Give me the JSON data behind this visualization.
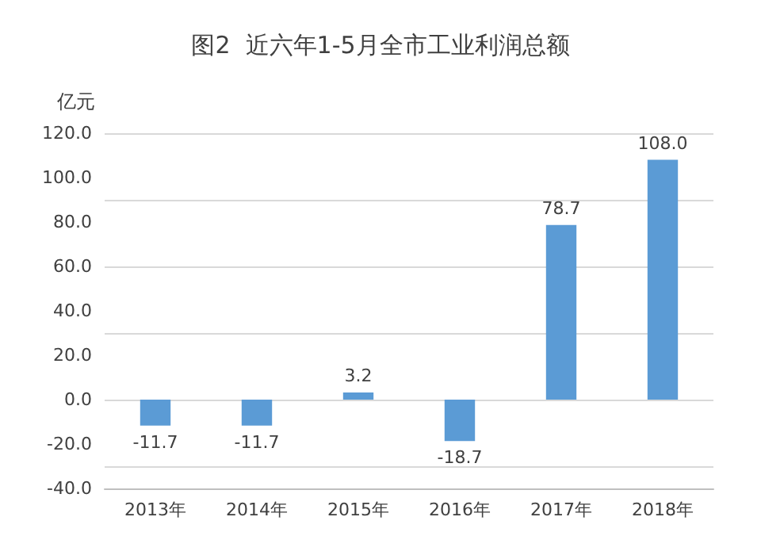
{
  "chart_data": {
    "type": "bar",
    "title": "图2  近六年1-5月全市工业利润总额",
    "ylabel": "亿元",
    "categories": [
      "2013年",
      "2014年",
      "2015年",
      "2016年",
      "2017年",
      "2018年"
    ],
    "values": [
      -11.7,
      -11.7,
      3.2,
      -18.7,
      78.7,
      108.0
    ],
    "value_labels": [
      "-11.7",
      "-11.7",
      "3.2",
      "-18.7",
      "78.7",
      "108.0"
    ],
    "color": "#5b9bd5",
    "ylim": [
      -40,
      120
    ],
    "yticks": [
      {
        "value": -40,
        "label": "-40.0"
      },
      {
        "value": -20,
        "label": "-20.0"
      },
      {
        "value": 0,
        "label": "0.0"
      },
      {
        "value": 20,
        "label": "20.0"
      },
      {
        "value": 40,
        "label": "40.0"
      },
      {
        "value": 60,
        "label": "60.0"
      },
      {
        "value": 80,
        "label": "80.0"
      },
      {
        "value": 100,
        "label": "100.0"
      },
      {
        "value": 120,
        "label": "120.0"
      }
    ],
    "grid": true
  }
}
